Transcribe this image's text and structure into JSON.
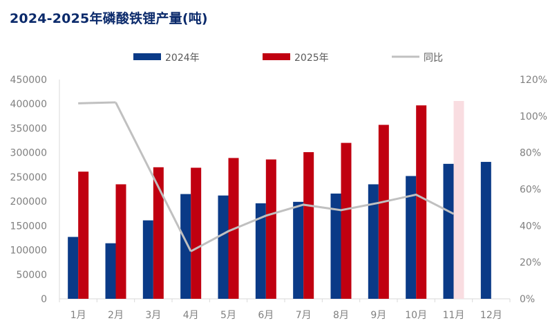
{
  "chart_data": {
    "type": "bar",
    "title": "2024-2025年磷酸铁锂产量(吨)",
    "categories": [
      "1月",
      "2月",
      "3月",
      "4月",
      "5月",
      "6月",
      "7月",
      "8月",
      "9月",
      "10月",
      "11月",
      "12月"
    ],
    "series": [
      {
        "name": "2024年",
        "kind": "bar",
        "axis": "left",
        "values": [
          127000,
          114000,
          161000,
          215000,
          212000,
          196000,
          199000,
          216000,
          235000,
          252000,
          277000,
          281000
        ],
        "color": "#0a3a87"
      },
      {
        "name": "2025年",
        "kind": "bar",
        "axis": "left",
        "values": [
          261000,
          235000,
          270000,
          269000,
          289000,
          286000,
          301000,
          320000,
          357000,
          397000,
          406000,
          null
        ],
        "color": "#c00010",
        "highlight_index": 10,
        "highlight_color": "#f9dde1"
      },
      {
        "name": "同比",
        "kind": "line",
        "axis": "right",
        "values": [
          1.07,
          1.075,
          null,
          0.26,
          0.37,
          0.455,
          0.515,
          0.485,
          0.525,
          0.57,
          0.465,
          null
        ],
        "color": "#c0c0c0"
      }
    ],
    "ylim": [
      0,
      450000
    ],
    "yticks": [
      0,
      50000,
      100000,
      150000,
      200000,
      250000,
      300000,
      350000,
      400000,
      450000
    ],
    "y2lim": [
      0,
      1.2
    ],
    "y2ticks": [
      "0%",
      "20%",
      "40%",
      "60%",
      "80%",
      "100%",
      "120%"
    ],
    "legend_position": "top",
    "grid": false,
    "xlabel": "",
    "ylabel": "",
    "y2label": ""
  }
}
